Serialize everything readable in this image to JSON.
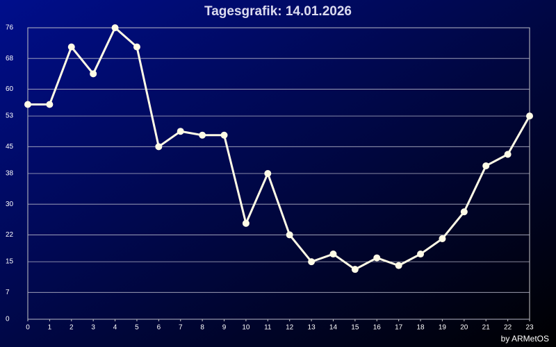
{
  "chart_data": {
    "type": "line",
    "title": "Tagesgrafik: 14.01.2026",
    "credit": "by ARMetOS",
    "x": [
      0,
      1,
      2,
      3,
      4,
      5,
      6,
      7,
      8,
      9,
      10,
      11,
      12,
      13,
      14,
      15,
      16,
      17,
      18,
      19,
      20,
      21,
      22,
      23
    ],
    "series": [
      {
        "color": "#fffbe6",
        "values": [
          56,
          56,
          71,
          64,
          76,
          71,
          45,
          49,
          48,
          48,
          25,
          38,
          22,
          15,
          17,
          13,
          16,
          14,
          17,
          21,
          28,
          40,
          43,
          53
        ]
      }
    ],
    "xlim": [
      0,
      23
    ],
    "xticks": [
      0,
      1,
      2,
      3,
      4,
      5,
      6,
      7,
      8,
      9,
      10,
      11,
      12,
      13,
      14,
      15,
      16,
      17,
      18,
      19,
      20,
      21,
      22,
      23
    ],
    "ylim": [
      0,
      76
    ],
    "yticks": [
      0,
      7,
      15,
      22,
      30,
      38,
      45,
      53,
      60,
      68,
      76
    ],
    "grid": true
  }
}
